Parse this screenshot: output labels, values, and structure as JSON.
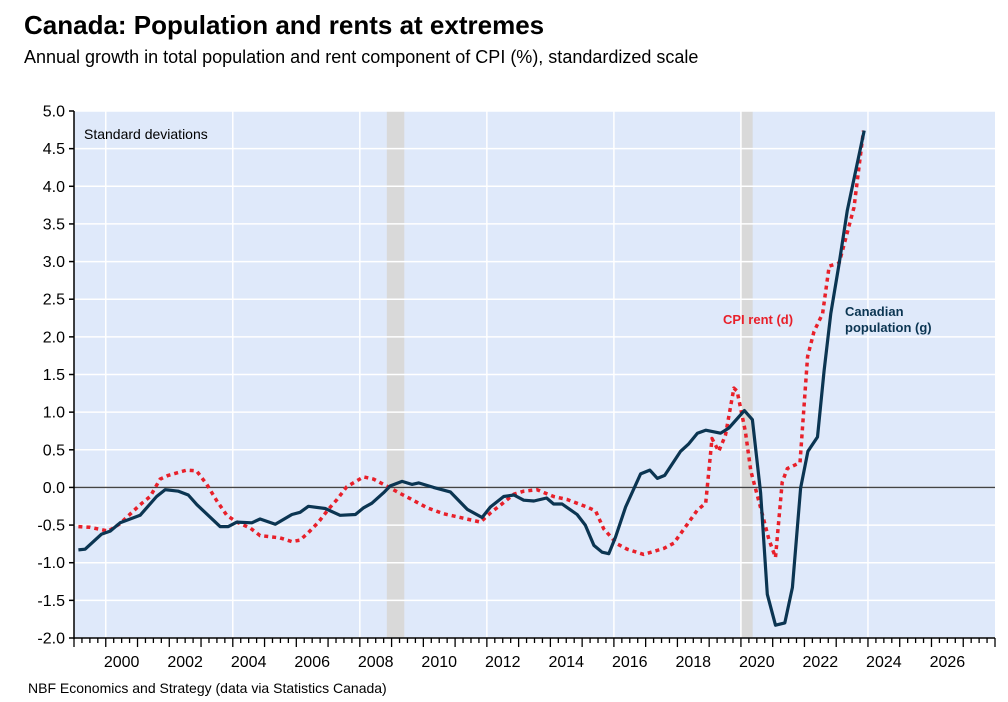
{
  "title": "Canada: Population and rents at extremes",
  "subtitle": "Annual growth in total population and rent component of CPI (%), standardized scale",
  "source": "NBF Economics and Strategy (data via Statistics Canada)",
  "chart_data": {
    "type": "line",
    "ylabel": "Standard deviations",
    "xlabel": "",
    "ylim": [
      -2.0,
      5.0
    ],
    "xlim": [
      1999,
      2028
    ],
    "yticks": [
      "-2.0",
      "-1.5",
      "-1.0",
      "-0.5",
      "0.0",
      "0.5",
      "1.0",
      "1.5",
      "2.0",
      "2.5",
      "3.0",
      "3.5",
      "4.0",
      "4.5",
      "5.0"
    ],
    "xticks": [
      "2000",
      "2002",
      "2004",
      "2006",
      "2008",
      "2010",
      "2012",
      "2014",
      "2016",
      "2018",
      "2020",
      "2022",
      "2024",
      "2026"
    ],
    "grid": true,
    "recessions": [
      [
        2008.85,
        2009.4
      ],
      [
        2020.0,
        2020.37
      ]
    ],
    "colors": {
      "population": "#0b3552",
      "rent": "#e8202a",
      "background": "#dfe9fa",
      "recession": "#d9d9d9"
    },
    "series": [
      {
        "name": "Canadian population (g)",
        "style": "solid",
        "points": [
          [
            1999.14,
            -0.83
          ],
          [
            1999.35,
            -0.82
          ],
          [
            1999.87,
            -0.62
          ],
          [
            2000.14,
            -0.58
          ],
          [
            2000.45,
            -0.47
          ],
          [
            2001.08,
            -0.37
          ],
          [
            2001.6,
            -0.12
          ],
          [
            2001.87,
            -0.03
          ],
          [
            2002.29,
            -0.05
          ],
          [
            2002.6,
            -0.1
          ],
          [
            2002.87,
            -0.23
          ],
          [
            2003.6,
            -0.52
          ],
          [
            2003.86,
            -0.52
          ],
          [
            2004.13,
            -0.46
          ],
          [
            2004.6,
            -0.47
          ],
          [
            2004.86,
            -0.42
          ],
          [
            2005.34,
            -0.49
          ],
          [
            2005.86,
            -0.36
          ],
          [
            2006.12,
            -0.33
          ],
          [
            2006.38,
            -0.25
          ],
          [
            2006.91,
            -0.28
          ],
          [
            2007.38,
            -0.37
          ],
          [
            2007.86,
            -0.36
          ],
          [
            2008.12,
            -0.27
          ],
          [
            2008.38,
            -0.21
          ],
          [
            2008.75,
            -0.07
          ],
          [
            2008.96,
            0.02
          ],
          [
            2009.33,
            0.08
          ],
          [
            2009.64,
            0.04
          ],
          [
            2009.85,
            0.06
          ],
          [
            2010.32,
            0.0
          ],
          [
            2010.85,
            -0.06
          ],
          [
            2011.38,
            -0.29
          ],
          [
            2011.85,
            -0.4
          ],
          [
            2012.11,
            -0.26
          ],
          [
            2012.53,
            -0.12
          ],
          [
            2012.85,
            -0.1
          ],
          [
            2013.16,
            -0.17
          ],
          [
            2013.48,
            -0.18
          ],
          [
            2013.88,
            -0.14
          ],
          [
            2014.1,
            -0.22
          ],
          [
            2014.37,
            -0.22
          ],
          [
            2014.84,
            -0.36
          ],
          [
            2015.1,
            -0.5
          ],
          [
            2015.37,
            -0.77
          ],
          [
            2015.63,
            -0.86
          ],
          [
            2015.84,
            -0.88
          ],
          [
            2016.05,
            -0.66
          ],
          [
            2016.37,
            -0.26
          ],
          [
            2016.84,
            0.18
          ],
          [
            2017.13,
            0.23
          ],
          [
            2017.37,
            0.12
          ],
          [
            2017.6,
            0.16
          ],
          [
            2018.1,
            0.48
          ],
          [
            2018.36,
            0.58
          ],
          [
            2018.63,
            0.72
          ],
          [
            2018.89,
            0.76
          ],
          [
            2019.36,
            0.72
          ],
          [
            2019.62,
            0.79
          ],
          [
            2020.11,
            1.02
          ],
          [
            2020.36,
            0.9
          ],
          [
            2020.62,
            -0.07
          ],
          [
            2020.83,
            -1.42
          ],
          [
            2021.09,
            -1.83
          ],
          [
            2021.38,
            -1.8
          ],
          [
            2021.62,
            -1.33
          ],
          [
            2021.88,
            -0.01
          ],
          [
            2022.11,
            0.48
          ],
          [
            2022.41,
            0.67
          ],
          [
            2022.62,
            1.55
          ],
          [
            2022.83,
            2.31
          ],
          [
            2023.09,
            2.97
          ],
          [
            2023.35,
            3.68
          ],
          [
            2023.88,
            4.74
          ]
        ]
      },
      {
        "name": "CPI rent (d)",
        "style": "dotted",
        "points": [
          [
            1999.14,
            -0.52
          ],
          [
            1999.5,
            -0.53
          ],
          [
            2000.08,
            -0.58
          ],
          [
            2000.45,
            -0.48
          ],
          [
            2001.08,
            -0.23
          ],
          [
            2001.4,
            -0.12
          ],
          [
            2001.71,
            0.11
          ],
          [
            2001.97,
            0.16
          ],
          [
            2002.55,
            0.23
          ],
          [
            2002.86,
            0.22
          ],
          [
            2003.18,
            0.04
          ],
          [
            2003.5,
            -0.18
          ],
          [
            2003.81,
            -0.37
          ],
          [
            2004.13,
            -0.46
          ],
          [
            2004.55,
            -0.54
          ],
          [
            2004.86,
            -0.64
          ],
          [
            2005.49,
            -0.67
          ],
          [
            2005.86,
            -0.72
          ],
          [
            2006.12,
            -0.7
          ],
          [
            2006.38,
            -0.6
          ],
          [
            2006.7,
            -0.46
          ],
          [
            2007.01,
            -0.29
          ],
          [
            2007.28,
            -0.16
          ],
          [
            2007.59,
            0.01
          ],
          [
            2008.12,
            0.14
          ],
          [
            2008.43,
            0.11
          ],
          [
            2008.75,
            0.04
          ],
          [
            2009.01,
            -0.02
          ],
          [
            2009.27,
            -0.08
          ],
          [
            2009.59,
            -0.15
          ],
          [
            2010.12,
            -0.27
          ],
          [
            2010.64,
            -0.35
          ],
          [
            2011.27,
            -0.41
          ],
          [
            2011.8,
            -0.46
          ],
          [
            2012.11,
            -0.34
          ],
          [
            2012.53,
            -0.2
          ],
          [
            2012.85,
            -0.09
          ],
          [
            2013.16,
            -0.05
          ],
          [
            2013.58,
            -0.03
          ],
          [
            2014.1,
            -0.12
          ],
          [
            2014.53,
            -0.16
          ],
          [
            2015.15,
            -0.26
          ],
          [
            2015.42,
            -0.31
          ],
          [
            2015.68,
            -0.55
          ],
          [
            2016.1,
            -0.75
          ],
          [
            2016.42,
            -0.82
          ],
          [
            2016.94,
            -0.89
          ],
          [
            2017.57,
            -0.81
          ],
          [
            2017.89,
            -0.74
          ],
          [
            2018.31,
            -0.49
          ],
          [
            2018.63,
            -0.3
          ],
          [
            2018.89,
            -0.21
          ],
          [
            2019.09,
            0.65
          ],
          [
            2019.3,
            0.48
          ],
          [
            2019.51,
            0.69
          ],
          [
            2019.78,
            1.32
          ],
          [
            2019.88,
            1.28
          ],
          [
            2020.14,
            0.74
          ],
          [
            2020.31,
            0.22
          ],
          [
            2020.62,
            -0.27
          ],
          [
            2020.88,
            -0.69
          ],
          [
            2021.09,
            -0.93
          ],
          [
            2021.3,
            0.07
          ],
          [
            2021.46,
            0.25
          ],
          [
            2021.86,
            0.33
          ],
          [
            2022.1,
            1.74
          ],
          [
            2022.3,
            2.07
          ],
          [
            2022.57,
            2.31
          ],
          [
            2022.78,
            2.94
          ],
          [
            2023.09,
            2.98
          ],
          [
            2023.56,
            3.72
          ],
          [
            2023.86,
            4.74
          ]
        ]
      }
    ],
    "annotations": {
      "rent": "CPI rent (d)",
      "population_line1": "Canadian",
      "population_line2": "population (g)"
    }
  }
}
